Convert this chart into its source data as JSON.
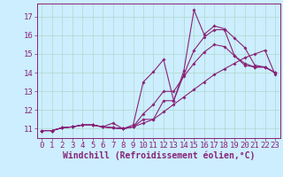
{
  "xlabel": "Windchill (Refroidissement éolien,°C)",
  "xlim": [
    -0.5,
    23.5
  ],
  "ylim": [
    10.5,
    17.7
  ],
  "xticks": [
    0,
    1,
    2,
    3,
    4,
    5,
    6,
    7,
    8,
    9,
    10,
    11,
    12,
    13,
    14,
    15,
    16,
    17,
    18,
    19,
    20,
    21,
    22,
    23
  ],
  "yticks": [
    11,
    12,
    13,
    14,
    15,
    16,
    17
  ],
  "bg_color": "#cceeff",
  "grid_color": "#b0d8cc",
  "line_color": "#882277",
  "series": [
    [
      10.9,
      10.9,
      11.05,
      11.1,
      11.2,
      11.2,
      11.1,
      11.05,
      11.0,
      11.1,
      11.3,
      11.5,
      11.9,
      12.3,
      12.7,
      13.1,
      13.5,
      13.9,
      14.2,
      14.5,
      14.8,
      15.0,
      15.2,
      13.9
    ],
    [
      10.9,
      10.9,
      11.05,
      11.1,
      11.2,
      11.2,
      11.1,
      11.05,
      11.0,
      11.1,
      11.8,
      12.3,
      13.0,
      13.0,
      13.8,
      14.5,
      15.1,
      15.5,
      15.4,
      14.9,
      14.5,
      14.3,
      14.3,
      14.0
    ],
    [
      10.9,
      10.9,
      11.05,
      11.1,
      11.2,
      11.2,
      11.1,
      11.3,
      11.0,
      11.2,
      13.5,
      14.05,
      14.7,
      12.5,
      14.1,
      17.35,
      16.05,
      16.5,
      16.35,
      15.85,
      15.35,
      14.4,
      14.3,
      14.0
    ],
    [
      10.9,
      10.9,
      11.05,
      11.1,
      11.2,
      11.2,
      11.1,
      11.05,
      11.0,
      11.1,
      11.5,
      11.5,
      12.5,
      12.5,
      13.9,
      15.2,
      15.9,
      16.3,
      16.3,
      14.9,
      14.4,
      14.3,
      14.3,
      14.0
    ]
  ],
  "font_family": "monospace",
  "font_size": 6.5,
  "xlabel_font_size": 7,
  "marker": "D",
  "marker_size": 1.8,
  "linewidth": 0.8
}
